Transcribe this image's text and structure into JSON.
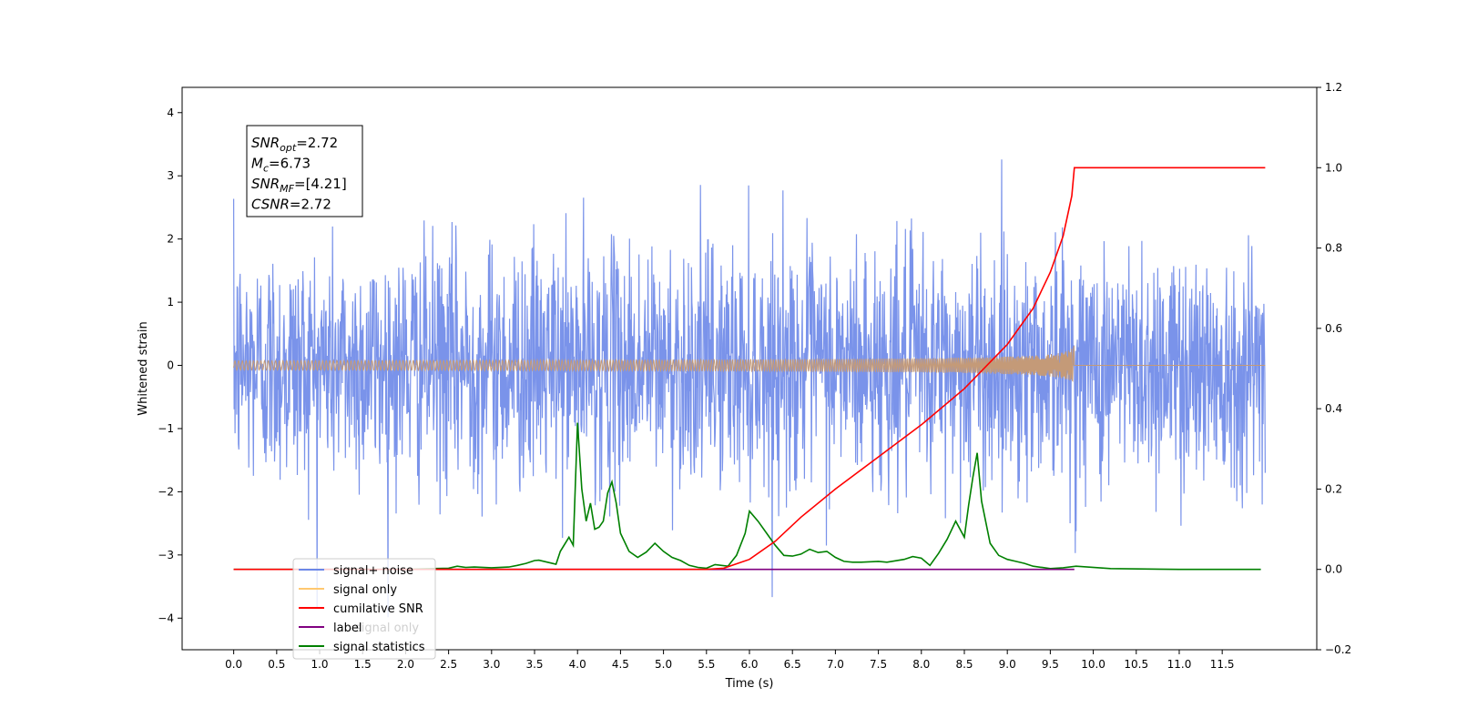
{
  "chart_data": {
    "type": "line",
    "xlabel": "Time (s)",
    "ylabel_left": "Whitened strain",
    "ylabel_right": "",
    "xlim": [
      -0.6,
      12.6
    ],
    "ylim_left": [
      -4.5,
      4.4
    ],
    "ylim_right": [
      -0.2,
      1.2
    ],
    "x_ticks": [
      0.0,
      0.5,
      1.0,
      1.5,
      2.0,
      2.5,
      3.0,
      3.5,
      4.0,
      4.5,
      5.0,
      5.5,
      6.0,
      6.5,
      7.0,
      7.5,
      8.0,
      8.5,
      9.0,
      9.5,
      10.0,
      10.5,
      11.0,
      11.5
    ],
    "x_tick_labels": [
      "0.0",
      "0.5",
      "1.0",
      "1.5",
      "2.0",
      "2.5",
      "3.0",
      "3.5",
      "4.0",
      "4.5",
      "5.0",
      "5.5",
      "6.0",
      "6.5",
      "7.0",
      "7.5",
      "8.0",
      "8.5",
      "9.0",
      "9.5",
      "10.0",
      "10.5",
      "11.0",
      "11.5"
    ],
    "y_ticks_left": [
      -4,
      -3,
      -2,
      -1,
      0,
      1,
      2,
      3,
      4
    ],
    "y_tick_labels_left": [
      "−4",
      "−3",
      "−2",
      "−1",
      "0",
      "1",
      "2",
      "3",
      "4"
    ],
    "y_ticks_right": [
      -0.2,
      0.0,
      0.2,
      0.4,
      0.6,
      0.8,
      1.0,
      1.2
    ],
    "y_tick_labels_right": [
      "−0.2",
      "0.0",
      "0.2",
      "0.4",
      "0.6",
      "0.8",
      "1.0",
      "1.2"
    ],
    "grid": false,
    "legend_placement": "lower-left",
    "series": [
      {
        "name": "signal+ noise",
        "color": "#6b87e8",
        "axis": "left",
        "noise_std": 0.95,
        "x_range": [
          0.0,
          12.0
        ]
      },
      {
        "name": "signal only",
        "color": "#f5b84a",
        "axis": "left",
        "chirp_end": 9.78,
        "peak_amplitude": 0.35
      },
      {
        "name": "cumilative SNR",
        "color": "#ff0000",
        "axis": "right",
        "x": [
          0.0,
          5.5,
          5.7,
          6.0,
          6.3,
          6.6,
          7.0,
          7.5,
          8.0,
          8.5,
          9.0,
          9.3,
          9.5,
          9.65,
          9.75,
          9.78,
          12.0
        ],
        "y": [
          0.0,
          0.0,
          0.003,
          0.025,
          0.07,
          0.13,
          0.2,
          0.28,
          0.36,
          0.45,
          0.56,
          0.65,
          0.74,
          0.83,
          0.93,
          1.0,
          1.0
        ]
      },
      {
        "name": "label",
        "color": "#800080",
        "axis": "right",
        "x": [
          2.35,
          9.78
        ],
        "y": [
          0.0,
          0.0
        ]
      },
      {
        "name": "signal statistics",
        "color": "#008000",
        "axis": "right",
        "x": [
          0.0,
          2.0,
          2.3,
          2.5,
          2.6,
          2.7,
          2.8,
          3.0,
          3.2,
          3.3,
          3.4,
          3.5,
          3.55,
          3.65,
          3.75,
          3.8,
          3.9,
          3.95,
          4.0,
          4.05,
          4.1,
          4.15,
          4.2,
          4.25,
          4.3,
          4.35,
          4.4,
          4.45,
          4.5,
          4.6,
          4.7,
          4.8,
          4.9,
          5.0,
          5.1,
          5.2,
          5.3,
          5.4,
          5.5,
          5.6,
          5.75,
          5.85,
          5.95,
          6.0,
          6.1,
          6.2,
          6.3,
          6.4,
          6.5,
          6.6,
          6.7,
          6.8,
          6.9,
          7.0,
          7.1,
          7.2,
          7.3,
          7.5,
          7.6,
          7.8,
          7.9,
          8.0,
          8.1,
          8.2,
          8.3,
          8.4,
          8.5,
          8.55,
          8.6,
          8.65,
          8.7,
          8.8,
          8.9,
          9.0,
          9.1,
          9.2,
          9.3,
          9.5,
          9.65,
          9.8,
          10.2,
          11.0,
          11.95
        ],
        "y": [
          0.0,
          0.0,
          0.002,
          0.003,
          0.008,
          0.005,
          0.006,
          0.004,
          0.006,
          0.01,
          0.015,
          0.022,
          0.023,
          0.018,
          0.013,
          0.045,
          0.08,
          0.06,
          0.365,
          0.2,
          0.12,
          0.165,
          0.1,
          0.105,
          0.12,
          0.19,
          0.218,
          0.165,
          0.09,
          0.045,
          0.03,
          0.043,
          0.065,
          0.045,
          0.03,
          0.022,
          0.01,
          0.005,
          0.003,
          0.012,
          0.008,
          0.035,
          0.09,
          0.145,
          0.12,
          0.09,
          0.06,
          0.035,
          0.033,
          0.038,
          0.05,
          0.042,
          0.045,
          0.03,
          0.02,
          0.018,
          0.018,
          0.02,
          0.018,
          0.025,
          0.032,
          0.028,
          0.01,
          0.04,
          0.075,
          0.12,
          0.08,
          0.16,
          0.23,
          0.29,
          0.17,
          0.065,
          0.035,
          0.025,
          0.02,
          0.015,
          0.008,
          0.002,
          0.004,
          0.008,
          0.002,
          0.0,
          0.0
        ]
      }
    ],
    "stats_box": [
      {
        "base": "SNR",
        "sub": "opt",
        "value": "=2.72"
      },
      {
        "base": "M",
        "sub": "c",
        "value": "=6.73"
      },
      {
        "base": "SNR",
        "sub": "MF",
        "value": "=[4.21]"
      },
      {
        "base": "CSNR",
        "sub": "",
        "value": "=2.72"
      }
    ],
    "overlaid_legend_text": "signal only"
  }
}
